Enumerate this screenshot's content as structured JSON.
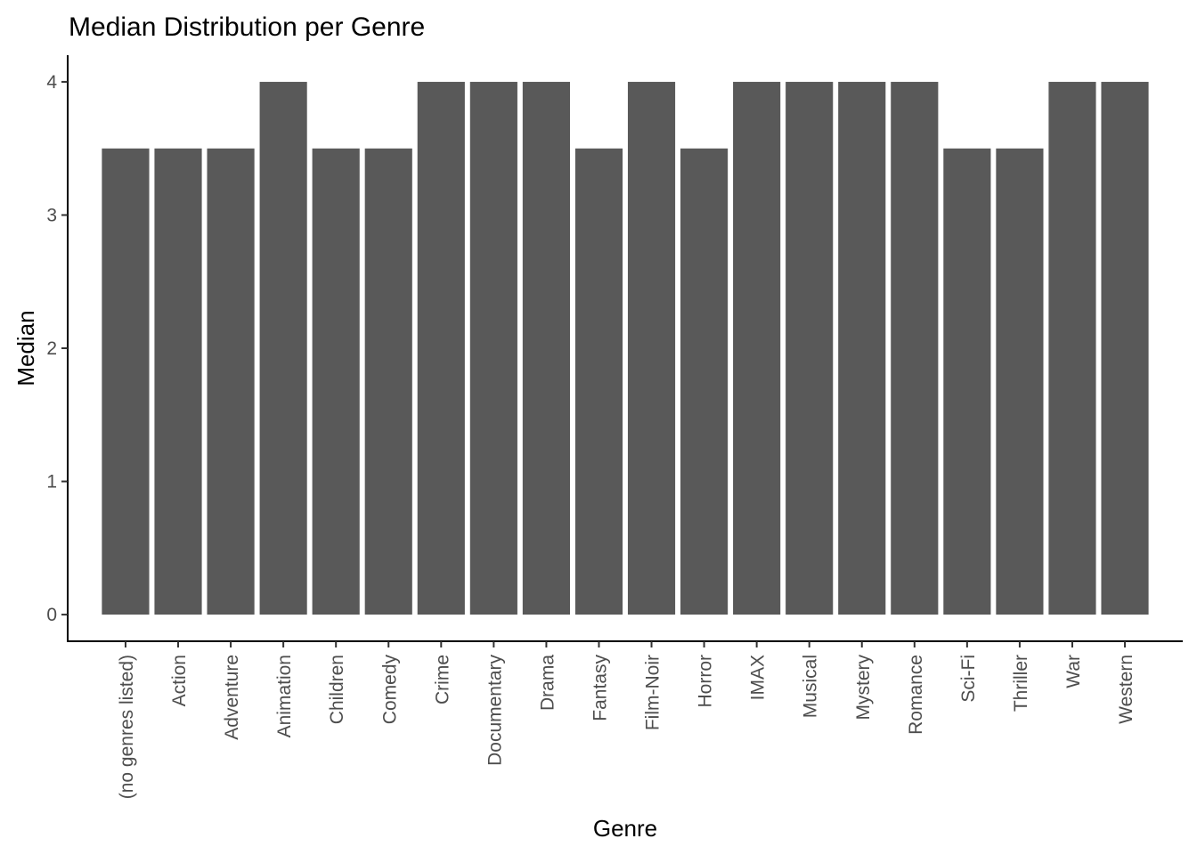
{
  "chart_data": {
    "type": "bar",
    "title": "Median Distribution per Genre",
    "xlabel": "Genre",
    "ylabel": "Median",
    "categories": [
      "(no genres listed)",
      "Action",
      "Adventure",
      "Animation",
      "Children",
      "Comedy",
      "Crime",
      "Documentary",
      "Drama",
      "Fantasy",
      "Film-Noir",
      "Horror",
      "IMAX",
      "Musical",
      "Mystery",
      "Romance",
      "Sci-Fi",
      "Thriller",
      "War",
      "Western"
    ],
    "values": [
      3.5,
      3.5,
      3.5,
      4,
      3.5,
      3.5,
      4,
      4,
      4,
      3.5,
      4,
      3.5,
      4,
      4,
      4,
      4,
      3.5,
      3.5,
      4,
      4
    ],
    "yticks": [
      0,
      1,
      2,
      3,
      4
    ],
    "ylim": [
      -0.2,
      4.2
    ],
    "grid": false,
    "legend": "none",
    "colors": {
      "bar": "#595959",
      "axis": "#000000",
      "tick_text": "#4d4d4d"
    }
  }
}
